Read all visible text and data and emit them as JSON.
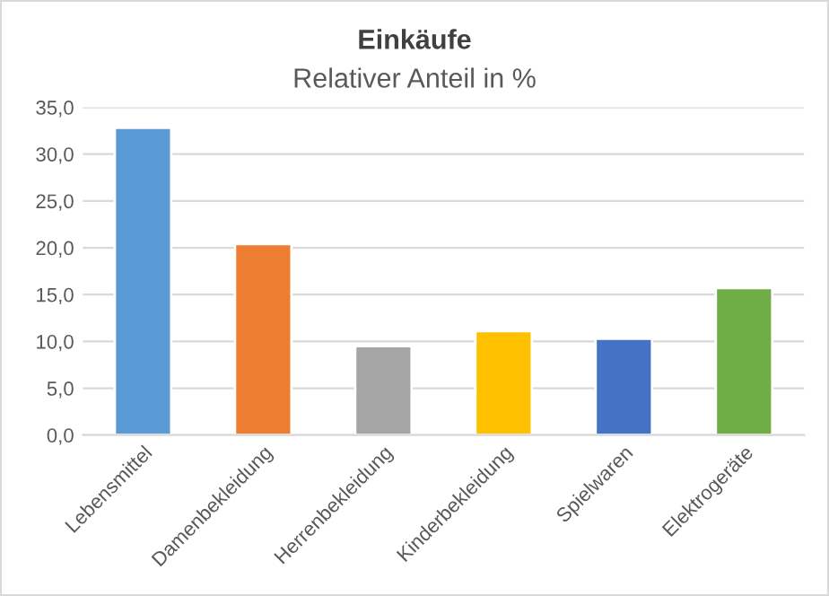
{
  "chart_data": {
    "type": "bar",
    "title": "Einkäufe",
    "subtitle": "Relativer Anteil in %",
    "categories": [
      "Lebensmittel",
      "Damenbekleidung",
      "Herrenbekleidung",
      "Kinderbekleidung",
      "Spielwaren",
      "Elektrogeräte"
    ],
    "values": [
      32.8,
      20.4,
      9.5,
      11.1,
      10.3,
      15.7
    ],
    "colors": [
      "#5b9bd5",
      "#ed7d31",
      "#a5a5a5",
      "#ffc000",
      "#4472c4",
      "#70ad47"
    ],
    "ylim": [
      0,
      35
    ],
    "yticks": [
      {
        "value": 0,
        "label": "0,0"
      },
      {
        "value": 5,
        "label": "5,0"
      },
      {
        "value": 10,
        "label": "10,0"
      },
      {
        "value": 15,
        "label": "15,0"
      },
      {
        "value": 20,
        "label": "20,0"
      },
      {
        "value": 25,
        "label": "25,0"
      },
      {
        "value": 30,
        "label": "30,0"
      },
      {
        "value": 35,
        "label": "35,0"
      }
    ],
    "grid": "y"
  }
}
